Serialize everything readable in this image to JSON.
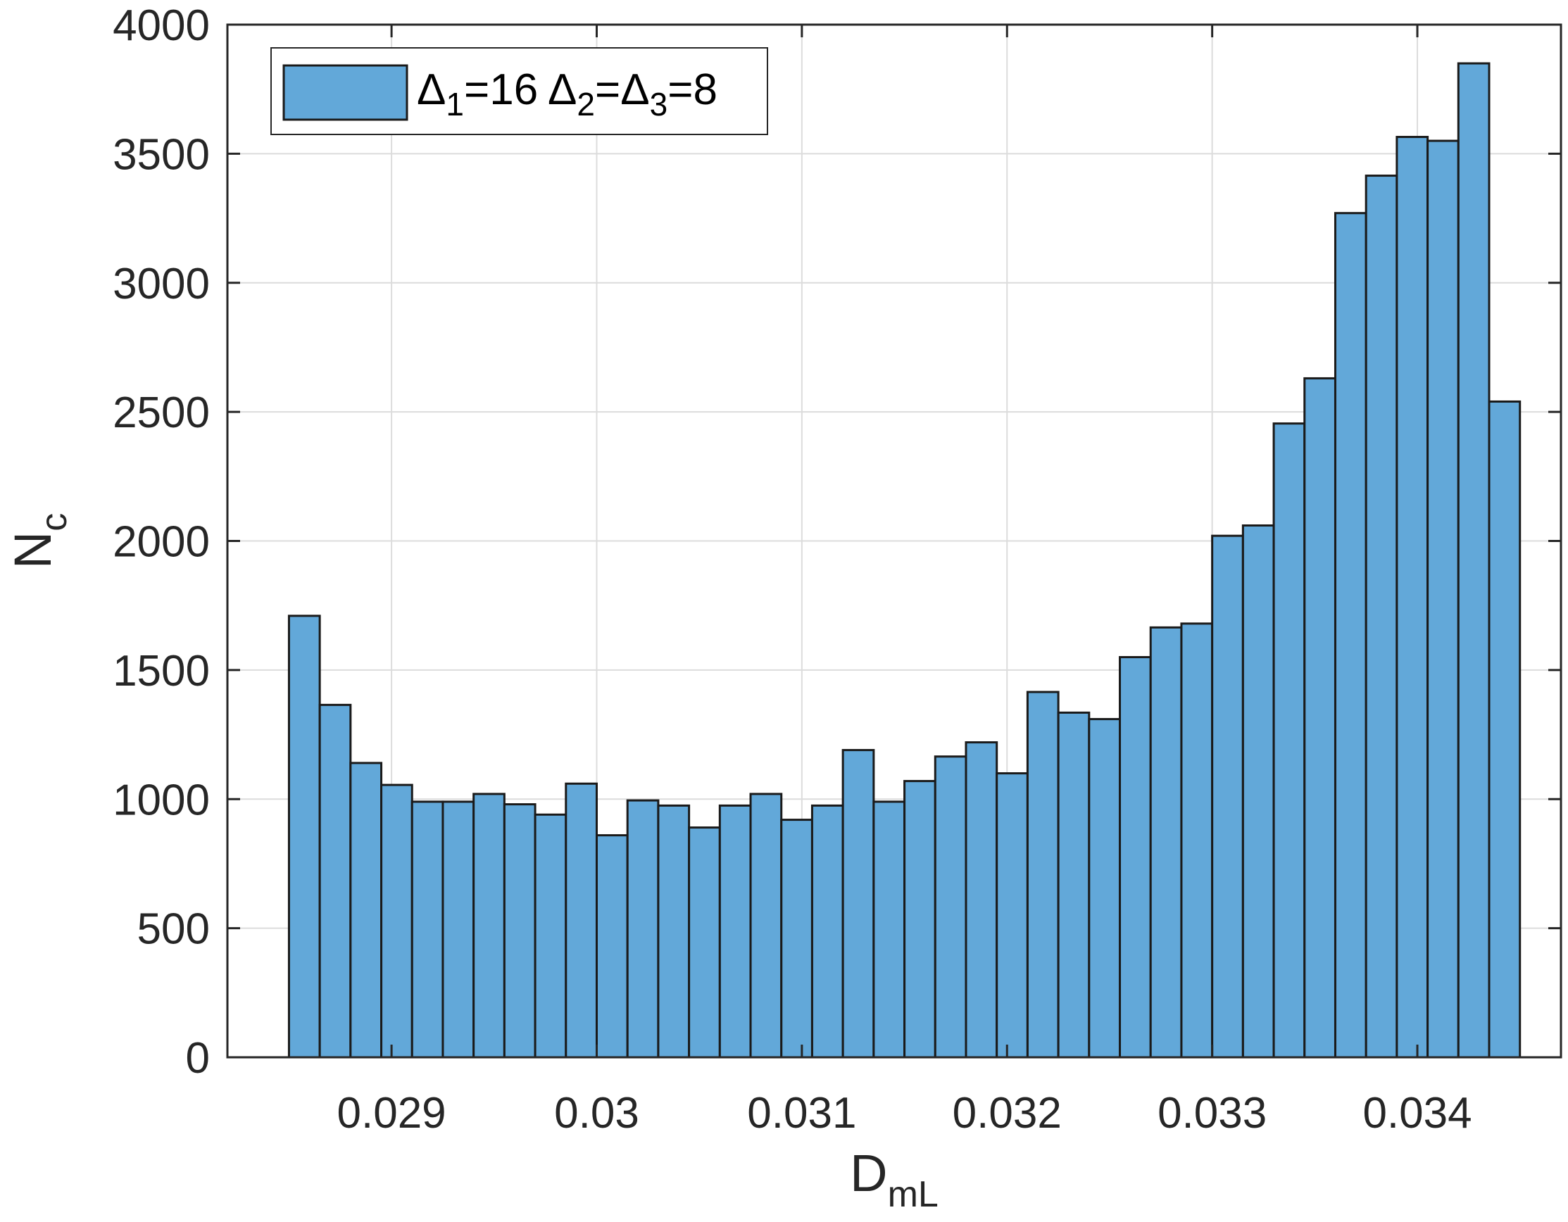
{
  "chart_data": {
    "type": "bar",
    "subtype": "histogram",
    "xlabel": "D",
    "xlabel_sub": "mL",
    "ylabel": "N",
    "ylabel_sub": "c",
    "xlim": [
      0.0282,
      0.0347
    ],
    "ylim": [
      0,
      4000
    ],
    "xticks": [
      0.029,
      0.03,
      0.031,
      0.032,
      0.033,
      0.034
    ],
    "xtick_labels": [
      "0.029",
      "0.03",
      "0.031",
      "0.032",
      "0.033",
      "0.034"
    ],
    "yticks": [
      0,
      500,
      1000,
      1500,
      2000,
      2500,
      3000,
      3500,
      4000
    ],
    "ytick_labels": [
      "0",
      "500",
      "1000",
      "1500",
      "2000",
      "2500",
      "3000",
      "3500",
      "4000"
    ],
    "grid": true,
    "legend_position": "top-left",
    "bin_start": 0.0285,
    "bin_width": 0.00015,
    "values": [
      1710,
      1365,
      1140,
      1055,
      990,
      990,
      1020,
      980,
      940,
      1060,
      860,
      995,
      975,
      890,
      975,
      1020,
      920,
      975,
      1190,
      990,
      1070,
      1165,
      1220,
      1100,
      1415,
      1335,
      1310,
      1550,
      1665,
      1680,
      2020,
      2060,
      2455,
      2630,
      3270,
      3415,
      3565,
      3550,
      3850,
      2540
    ],
    "series": [
      {
        "name_parts": [
          "Δ",
          "1",
          "=16 ",
          "Δ",
          "2",
          "=",
          "Δ",
          "3",
          "=8"
        ],
        "color": "#62A8D9",
        "edge_color": "#1a1a1a"
      }
    ],
    "axis_color": "#262626",
    "grid_color": "#DCDCDC"
  }
}
